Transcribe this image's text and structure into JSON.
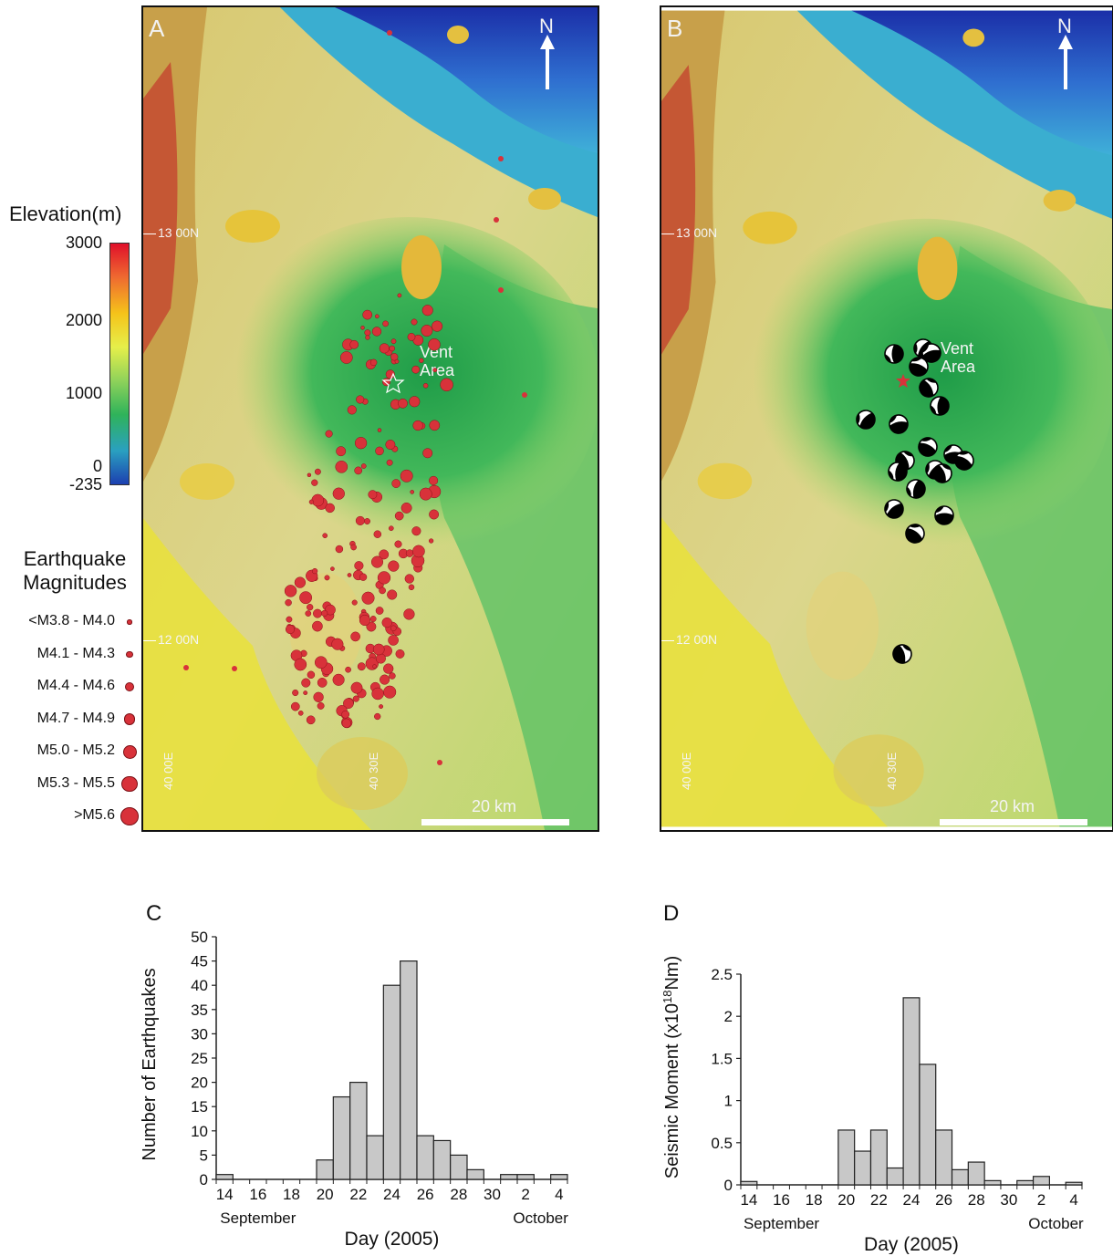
{
  "legend": {
    "elevation_title": "Elevation(m)",
    "colorbar_ticks": [
      "3000",
      "2000",
      "1000",
      "0",
      "-235"
    ],
    "colorbar_colors": [
      "#e0102a",
      "#ef6a30",
      "#f5c31a",
      "#e6ef4a",
      "#8fd25a",
      "#2fb35a",
      "#2aa0c0",
      "#1c3fb0"
    ],
    "magnitude_title_line1": "Earthquake",
    "magnitude_title_line2": "Magnitudes",
    "magnitudes": [
      {
        "label": "<M3.8 - M4.0",
        "size": 1
      },
      {
        "label": "M4.1 - M4.3",
        "size": 2
      },
      {
        "label": "M4.4 - M4.6",
        "size": 3
      },
      {
        "label": "M4.7 - M4.9",
        "size": 4
      },
      {
        "label": "M5.0 - M5.2",
        "size": 5
      },
      {
        "label": "M5.3 - M5.5",
        "size": 6
      },
      {
        "label": ">M5.6",
        "size": 7
      }
    ]
  },
  "map_a": {
    "panel_label": "A",
    "north_label": "N",
    "vent_label_1": "Vent",
    "vent_label_2": "Area",
    "lat_13": "13 00N",
    "lat_12": "12 00N",
    "lon_1": "40 00E",
    "lon_2": "40 30E",
    "scale_label": "20 km",
    "quake_color": "#d8323a"
  },
  "map_b": {
    "panel_label": "B",
    "north_label": "N",
    "vent_label_1": "Vent",
    "vent_label_2": "Area",
    "lat_13": "13 00N",
    "lat_12": "12 00N",
    "lon_1": "40 00E",
    "lon_2": "40 30E",
    "scale_label": "20 km"
  },
  "chart_data": [
    {
      "type": "bar",
      "panel_label": "C",
      "ylabel": "Number of Earthquakes",
      "xlabel": "Day (2005)",
      "month_left": "September",
      "month_right": "October",
      "days": [
        14,
        15,
        16,
        17,
        18,
        19,
        20,
        21,
        22,
        23,
        24,
        25,
        26,
        27,
        28,
        29,
        30,
        1,
        2,
        3,
        4
      ],
      "values": [
        1,
        0,
        0,
        0,
        0,
        0,
        4,
        17,
        20,
        9,
        40,
        45,
        9,
        8,
        5,
        2,
        0,
        1,
        1,
        0,
        1
      ],
      "xtick_labels": [
        "14",
        "16",
        "18",
        "20",
        "22",
        "24",
        "26",
        "28",
        "30",
        "2",
        "4"
      ],
      "yticks": [
        "0",
        "5",
        "10",
        "15",
        "20",
        "25",
        "30",
        "35",
        "40",
        "45",
        "50"
      ],
      "ylim": [
        0,
        50
      ],
      "bar_color": "#c8c8c8"
    },
    {
      "type": "bar",
      "panel_label": "D",
      "ylabel": "Seismic Moment (x10",
      "ylabel_sup": "18",
      "ylabel_tail": "Nm)",
      "xlabel": "Day (2005)",
      "month_left": "September",
      "month_right": "October",
      "days": [
        14,
        15,
        16,
        17,
        18,
        19,
        20,
        21,
        22,
        23,
        24,
        25,
        26,
        27,
        28,
        29,
        30,
        1,
        2,
        3,
        4
      ],
      "values": [
        0.04,
        0,
        0,
        0,
        0,
        0,
        0.65,
        0.4,
        0.65,
        0.2,
        2.22,
        1.43,
        0.65,
        0.18,
        0.27,
        0.05,
        0,
        0.05,
        0.1,
        0,
        0.03
      ],
      "xtick_labels": [
        "14",
        "16",
        "18",
        "20",
        "22",
        "24",
        "26",
        "28",
        "30",
        "2",
        "4"
      ],
      "yticks": [
        "0",
        "0.5",
        "1",
        "1.5",
        "2",
        "2.5"
      ],
      "ylim": [
        0,
        2.5
      ],
      "bar_color": "#c8c8c8"
    }
  ]
}
